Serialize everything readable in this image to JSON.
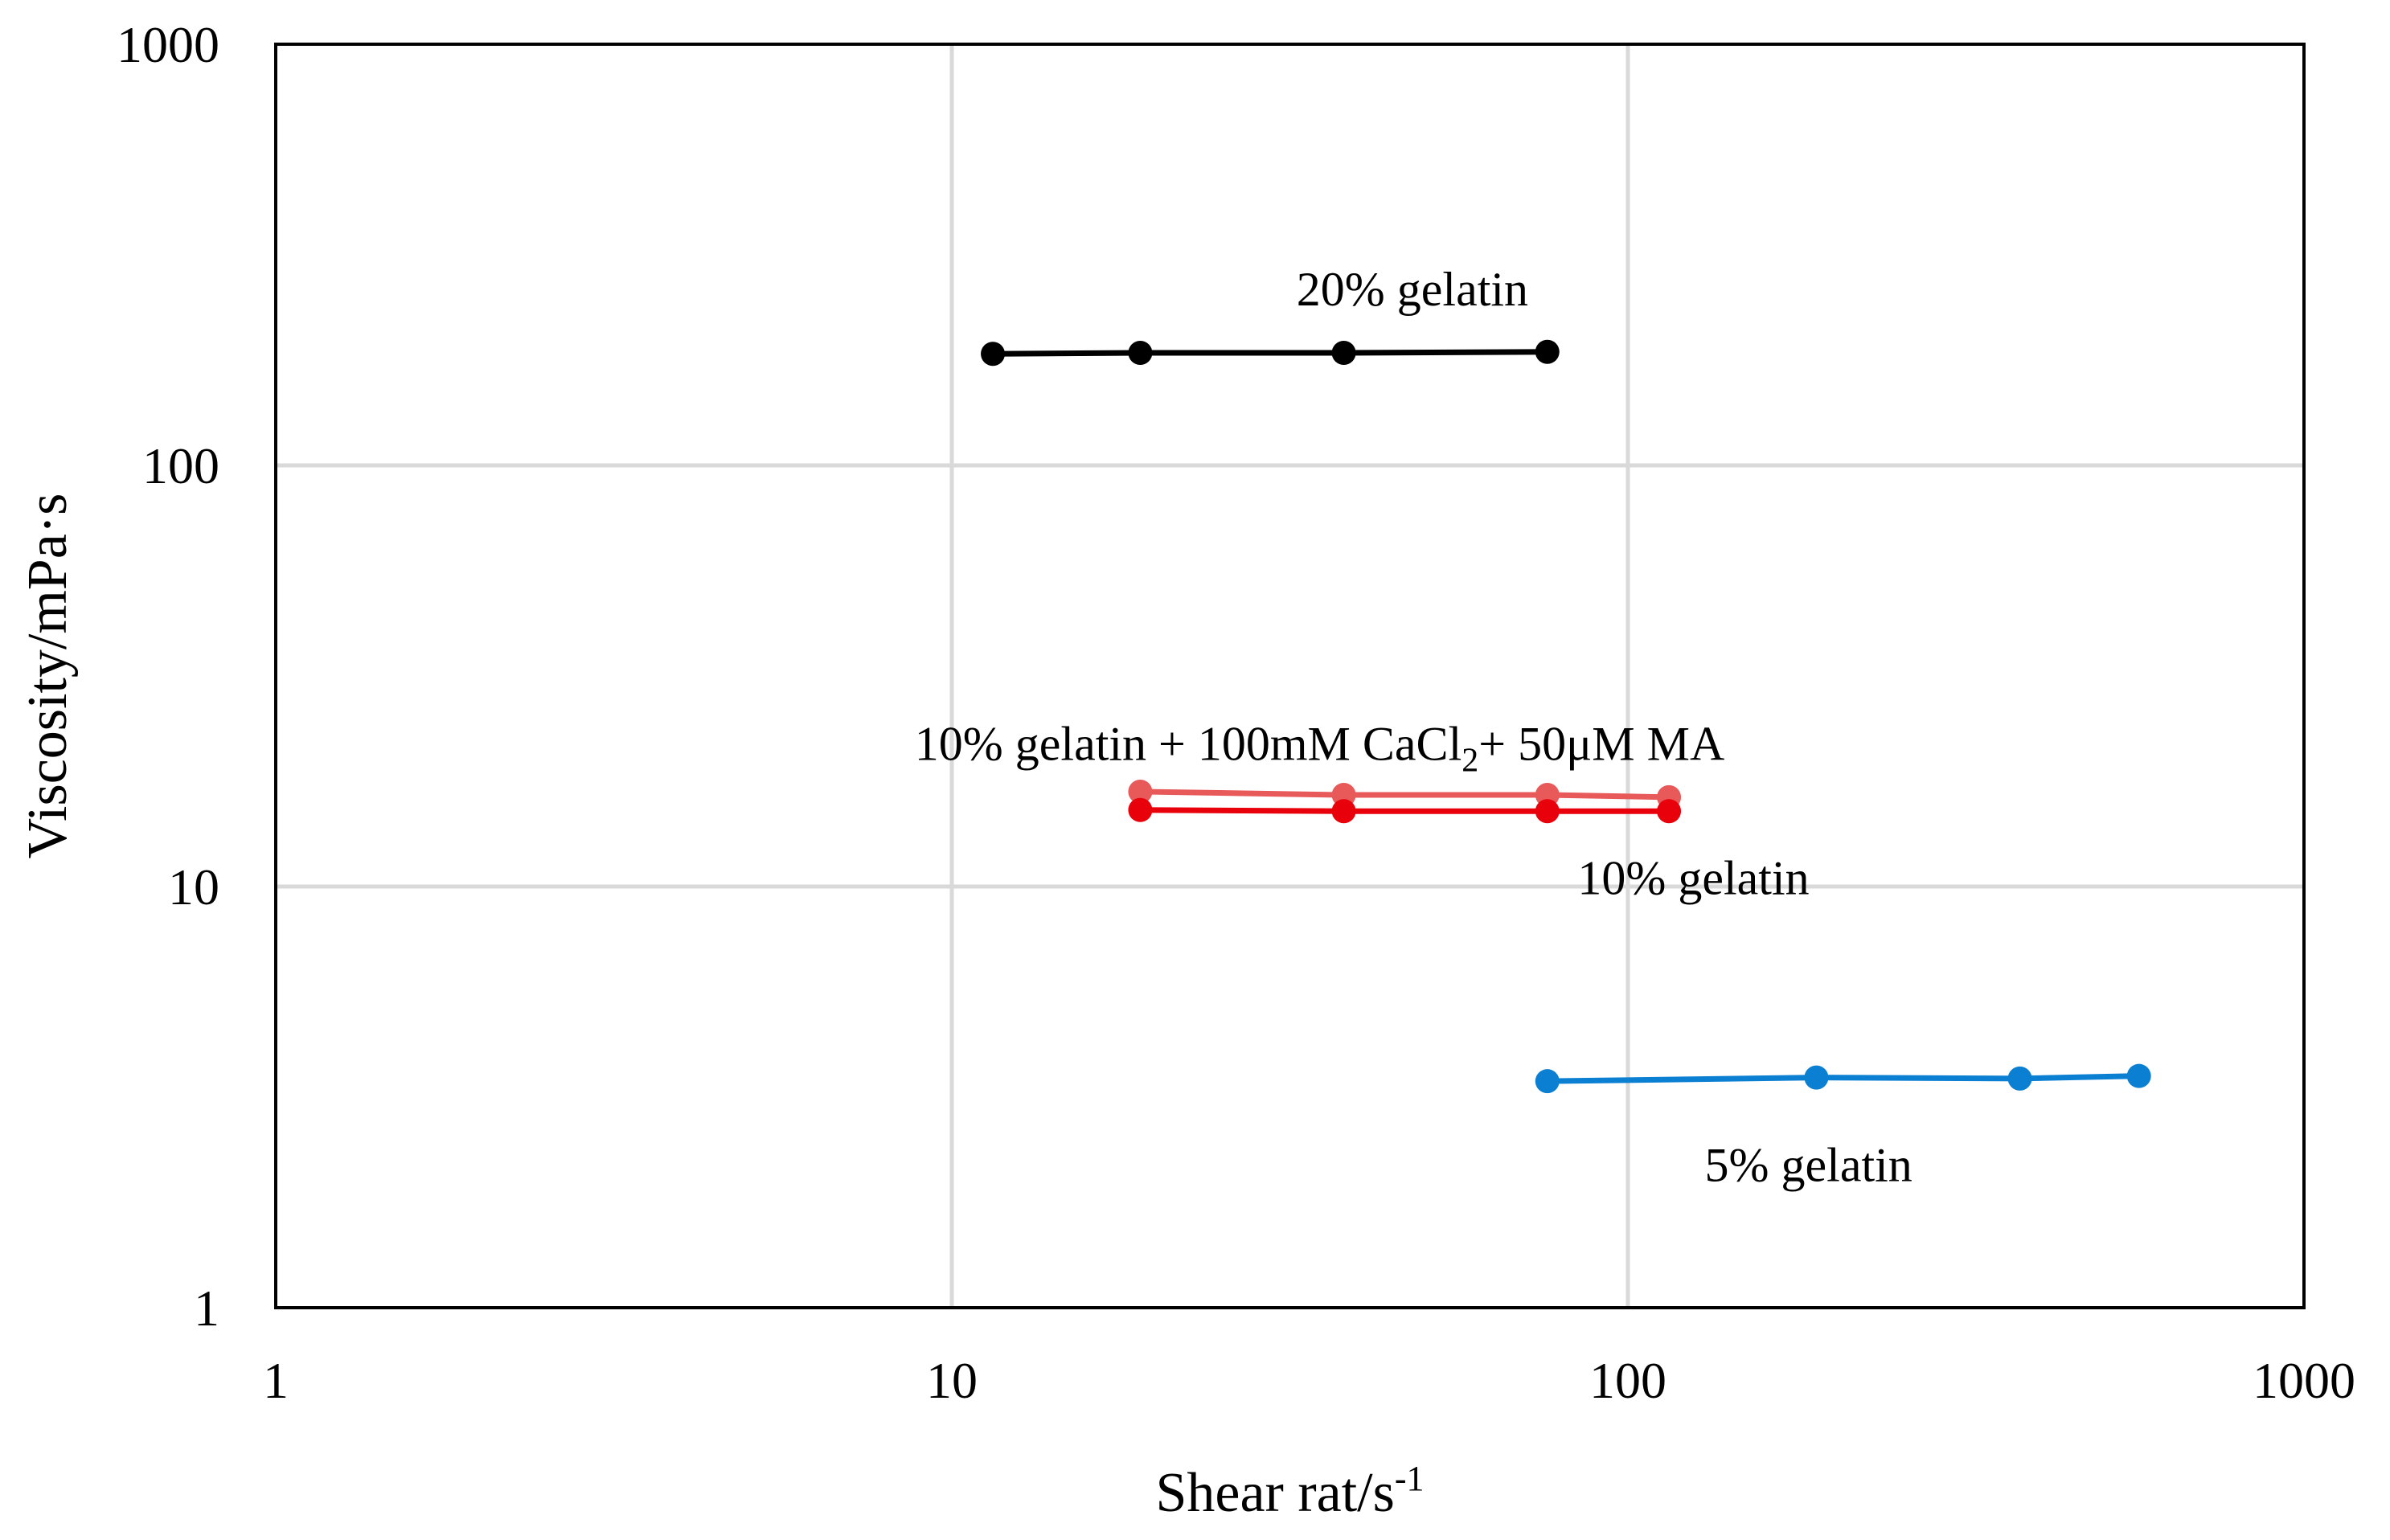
{
  "chart_data": {
    "type": "line",
    "title": "",
    "xlabel": "Shear rat/s",
    "xlabel_superscript": "-1",
    "ylabel": "Viscosity/mPa·s",
    "xscale": "log",
    "yscale": "log",
    "xlim": [
      1,
      1000
    ],
    "ylim": [
      1,
      1000
    ],
    "grid": true,
    "legend": "none",
    "xticks": [
      1,
      10,
      100,
      1000
    ],
    "xtick_labels": [
      "1",
      "10",
      "100",
      "1000"
    ],
    "yticks": [
      1,
      10,
      100,
      1000
    ],
    "ytick_labels": [
      "1",
      "10",
      "100",
      "1000"
    ],
    "series": [
      {
        "name": "20% gelatin",
        "color": "#000000",
        "x": [
          11.5,
          19,
          38,
          76
        ],
        "y": [
          184,
          185,
          185,
          186
        ],
        "label_anchor": [
          48,
          240
        ]
      },
      {
        "name": "10% gelatin + 100mM CaCl2+ 50μM MA",
        "label_main": "10% gelatin + 100mM CaCl",
        "label_sub": "2",
        "label_rest": "+ 50μM MA",
        "color": "#e8595a",
        "x": [
          19,
          38,
          76,
          115
        ],
        "y": [
          16.8,
          16.5,
          16.5,
          16.3
        ],
        "label_anchor": [
          35,
          20
        ]
      },
      {
        "name": "10% gelatin",
        "color": "#e8000b",
        "x": [
          19,
          38,
          76,
          115
        ],
        "y": [
          15.2,
          15.1,
          15.1,
          15.1
        ],
        "label_anchor": [
          125,
          9.6
        ]
      },
      {
        "name": "5% gelatin",
        "color": "#0b7fd1",
        "x": [
          76,
          190,
          380,
          570
        ],
        "y": [
          3.45,
          3.52,
          3.5,
          3.55
        ],
        "label_anchor": [
          185,
          2.0
        ]
      }
    ]
  }
}
